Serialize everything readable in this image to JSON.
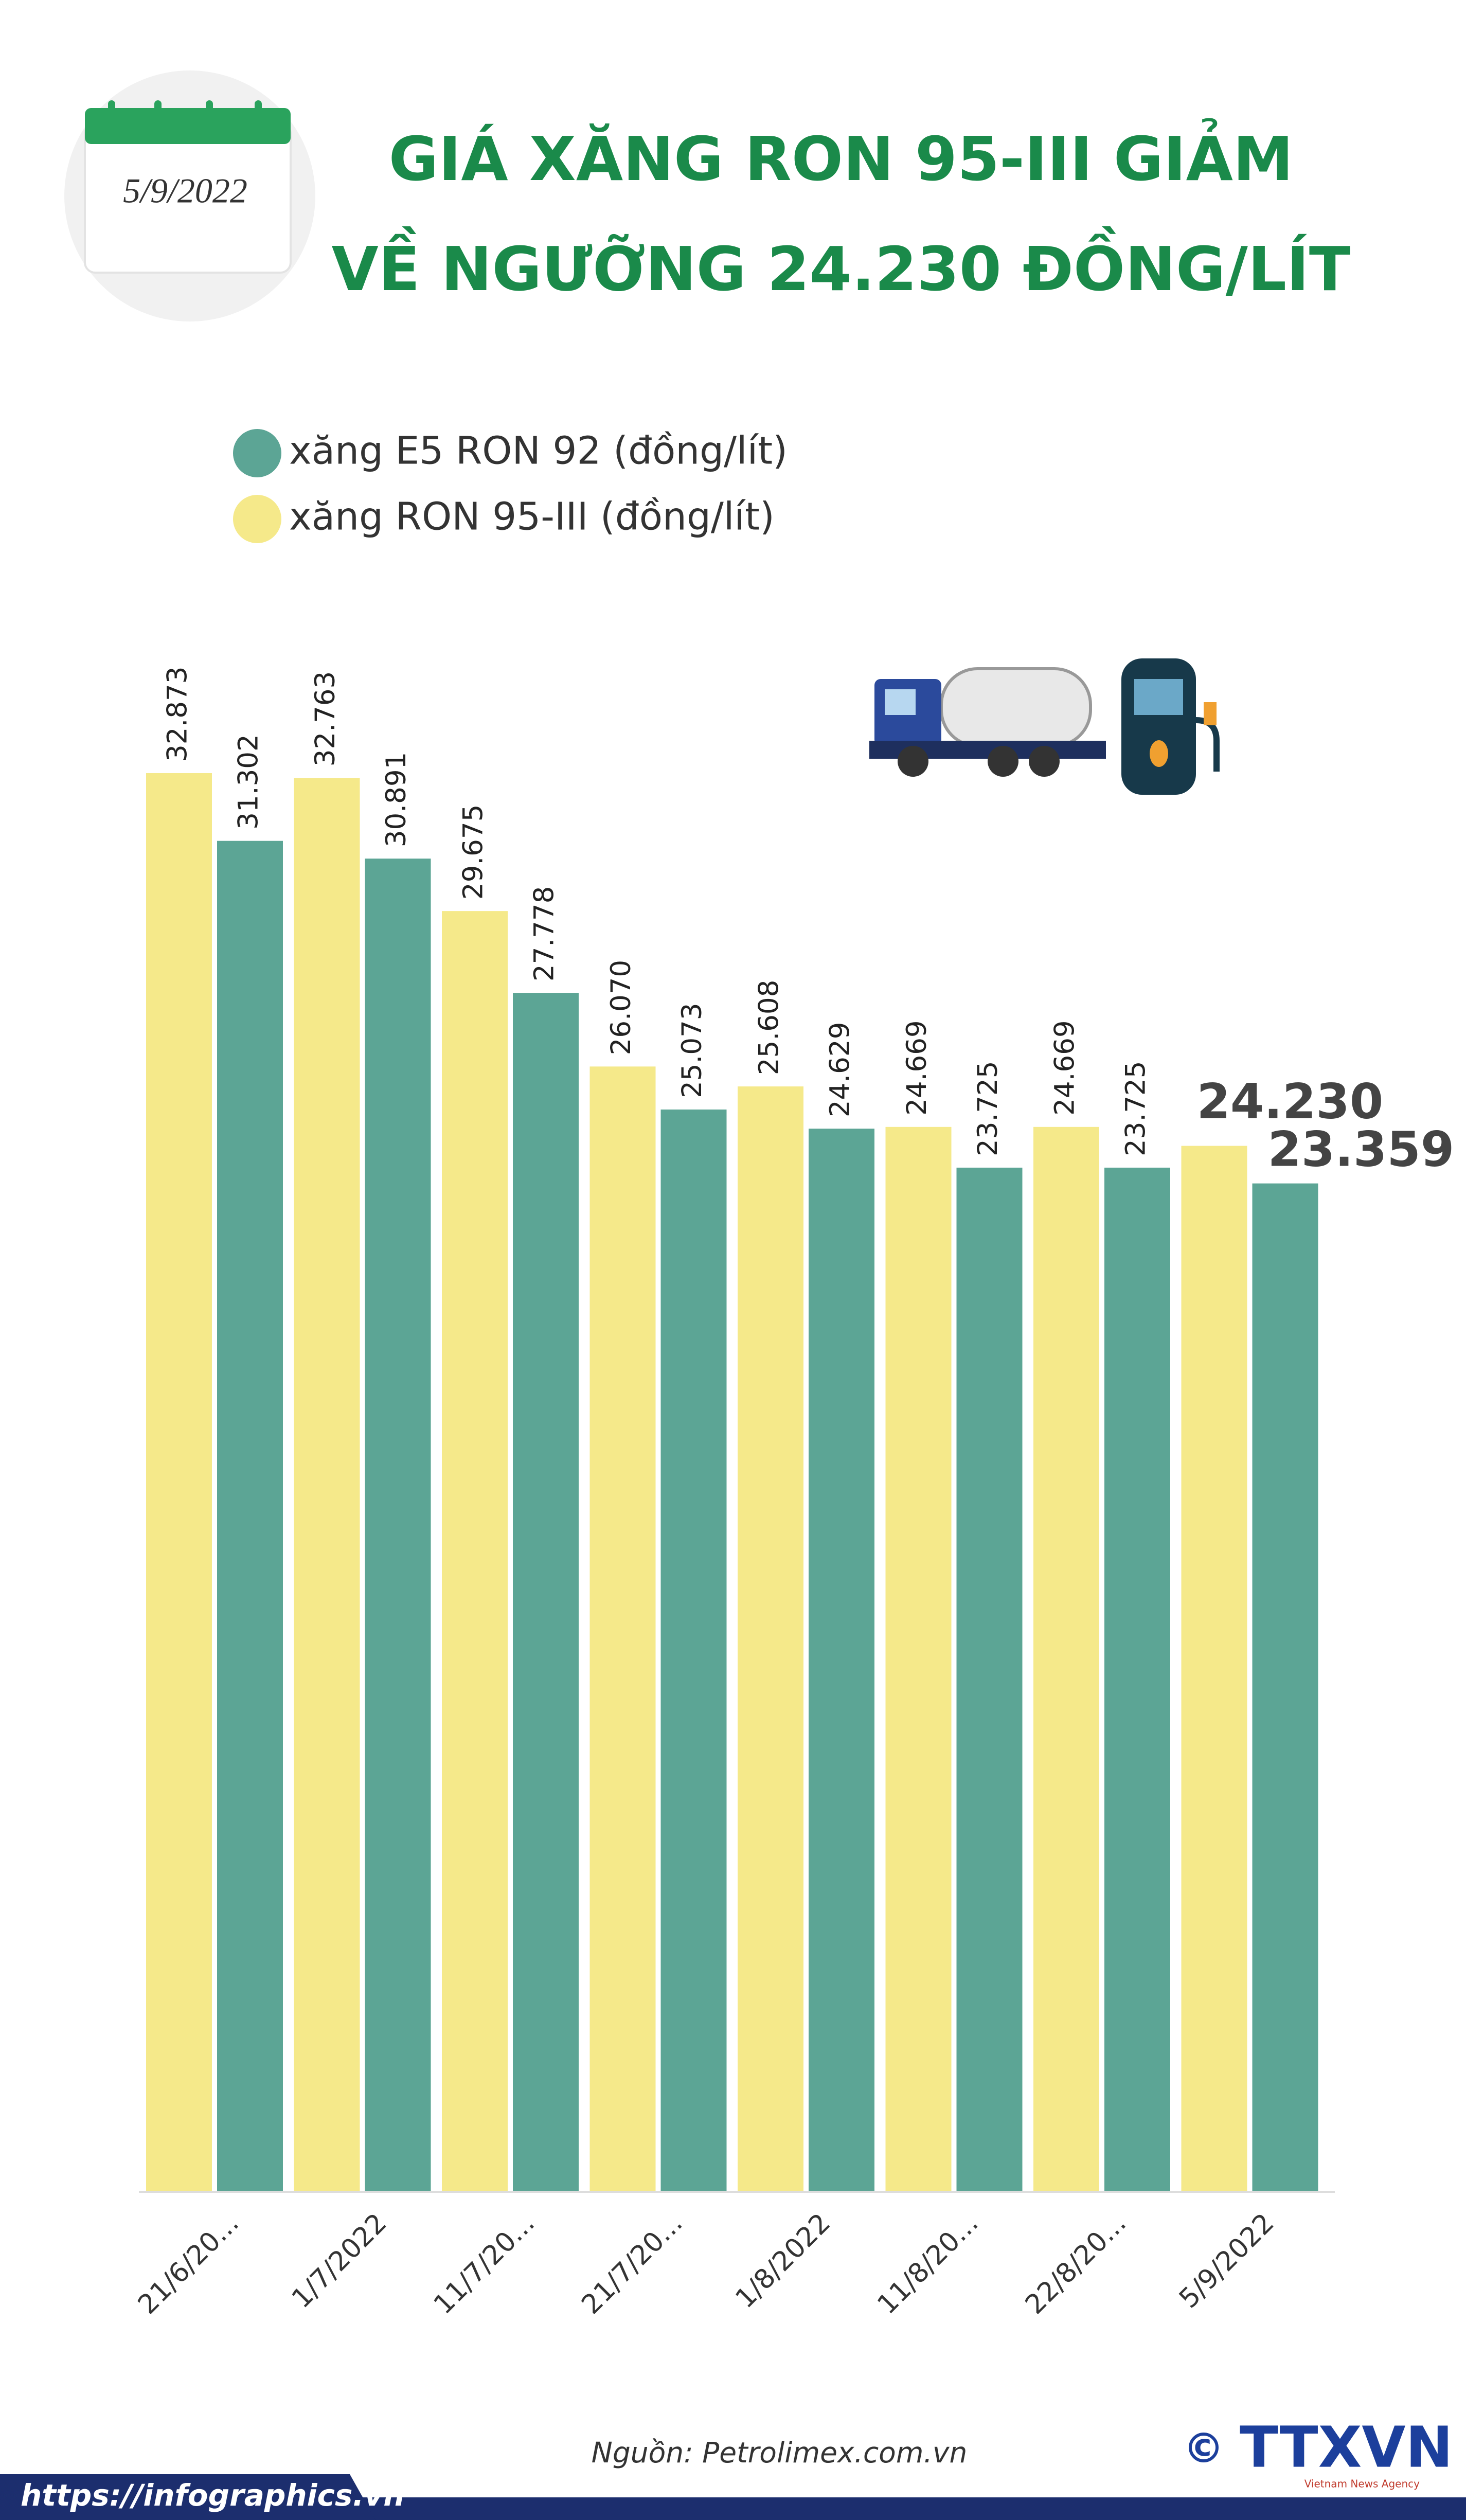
{
  "header": {
    "date": "5/9/2022"
  },
  "chart_data": {
    "type": "bar",
    "title": [
      "GIÁ XĂNG RON 95-III GIẢM",
      "VỀ NGƯỠNG 24.230 ĐỒNG/LÍT"
    ],
    "categories": [
      "21/6/20...",
      "1/7/2022",
      "11/7/20...",
      "21/7/20...",
      "1/8/2022",
      "11/8/20...",
      "22/8/20...",
      "5/9/2022"
    ],
    "series": [
      {
        "name": "xăng E5 RON 92 (đồng/lít)",
        "color": "#5ca595",
        "values": [
          31302,
          30891,
          27778,
          25073,
          24629,
          23725,
          23725,
          23359
        ],
        "value_labels": [
          "31.302",
          "30.891",
          "27.778",
          "25.073",
          "24.629",
          "23.725",
          "23.725",
          "23.359"
        ]
      },
      {
        "name": "xăng RON 95-III (đồng/lít)",
        "color": "#f5e98a",
        "values": [
          32873,
          32763,
          29675,
          26070,
          25608,
          24669,
          24669,
          24230
        ],
        "value_labels": [
          "32.873",
          "32.763",
          "29.675",
          "26.070",
          "25.608",
          "24.669",
          "24.669",
          "24.230"
        ]
      }
    ]
  },
  "footer": {
    "source": "Nguồn: Petrolimex.com.vn",
    "url": "https://infographics.vn",
    "copyright": "©",
    "logo": "TTXVN",
    "logo_sub": "Vietnam News Agency"
  }
}
